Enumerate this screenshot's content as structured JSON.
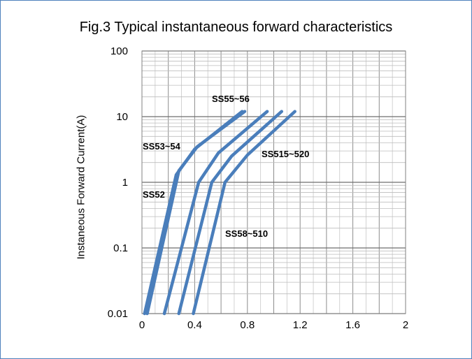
{
  "chart_data": {
    "type": "line",
    "title": "Fig.3 Typical instantaneous forward characteristics",
    "xlabel": "",
    "ylabel": "Instaneous Forward Current(A)",
    "xlim": [
      0,
      2
    ],
    "ylim": [
      0.01,
      100
    ],
    "yscale": "log",
    "grid": true,
    "x_ticks": [
      "0",
      "0.4",
      "0.8",
      "1.2",
      "1.6",
      "2"
    ],
    "y_ticks": [
      "0.01",
      "0.1",
      "1",
      "10",
      "100"
    ],
    "line_color": "#4a7ebb",
    "series": [
      {
        "name": "SS52",
        "x": [
          0.02,
          0.26,
          0.4,
          0.76
        ],
        "y": [
          0.01,
          1.3,
          3.2,
          12
        ]
      },
      {
        "name": "SS53~54",
        "x": [
          0.04,
          0.28,
          0.42,
          0.78
        ],
        "y": [
          0.01,
          1.5,
          3.5,
          12
        ]
      },
      {
        "name": "SS55~56",
        "x": [
          0.17,
          0.43,
          0.58,
          0.95
        ],
        "y": [
          0.01,
          1.0,
          2.8,
          12
        ]
      },
      {
        "name": "SS58~510",
        "x": [
          0.28,
          0.53,
          0.68,
          1.06
        ],
        "y": [
          0.01,
          1.0,
          2.5,
          12
        ]
      },
      {
        "name": "SS515~520",
        "x": [
          0.39,
          0.63,
          0.8,
          1.16
        ],
        "y": [
          0.01,
          1.0,
          2.6,
          12
        ]
      }
    ],
    "annotations": [
      "SS55~56",
      "SS53~54",
      "SS515~520",
      "SS52",
      "SS58~510"
    ]
  }
}
